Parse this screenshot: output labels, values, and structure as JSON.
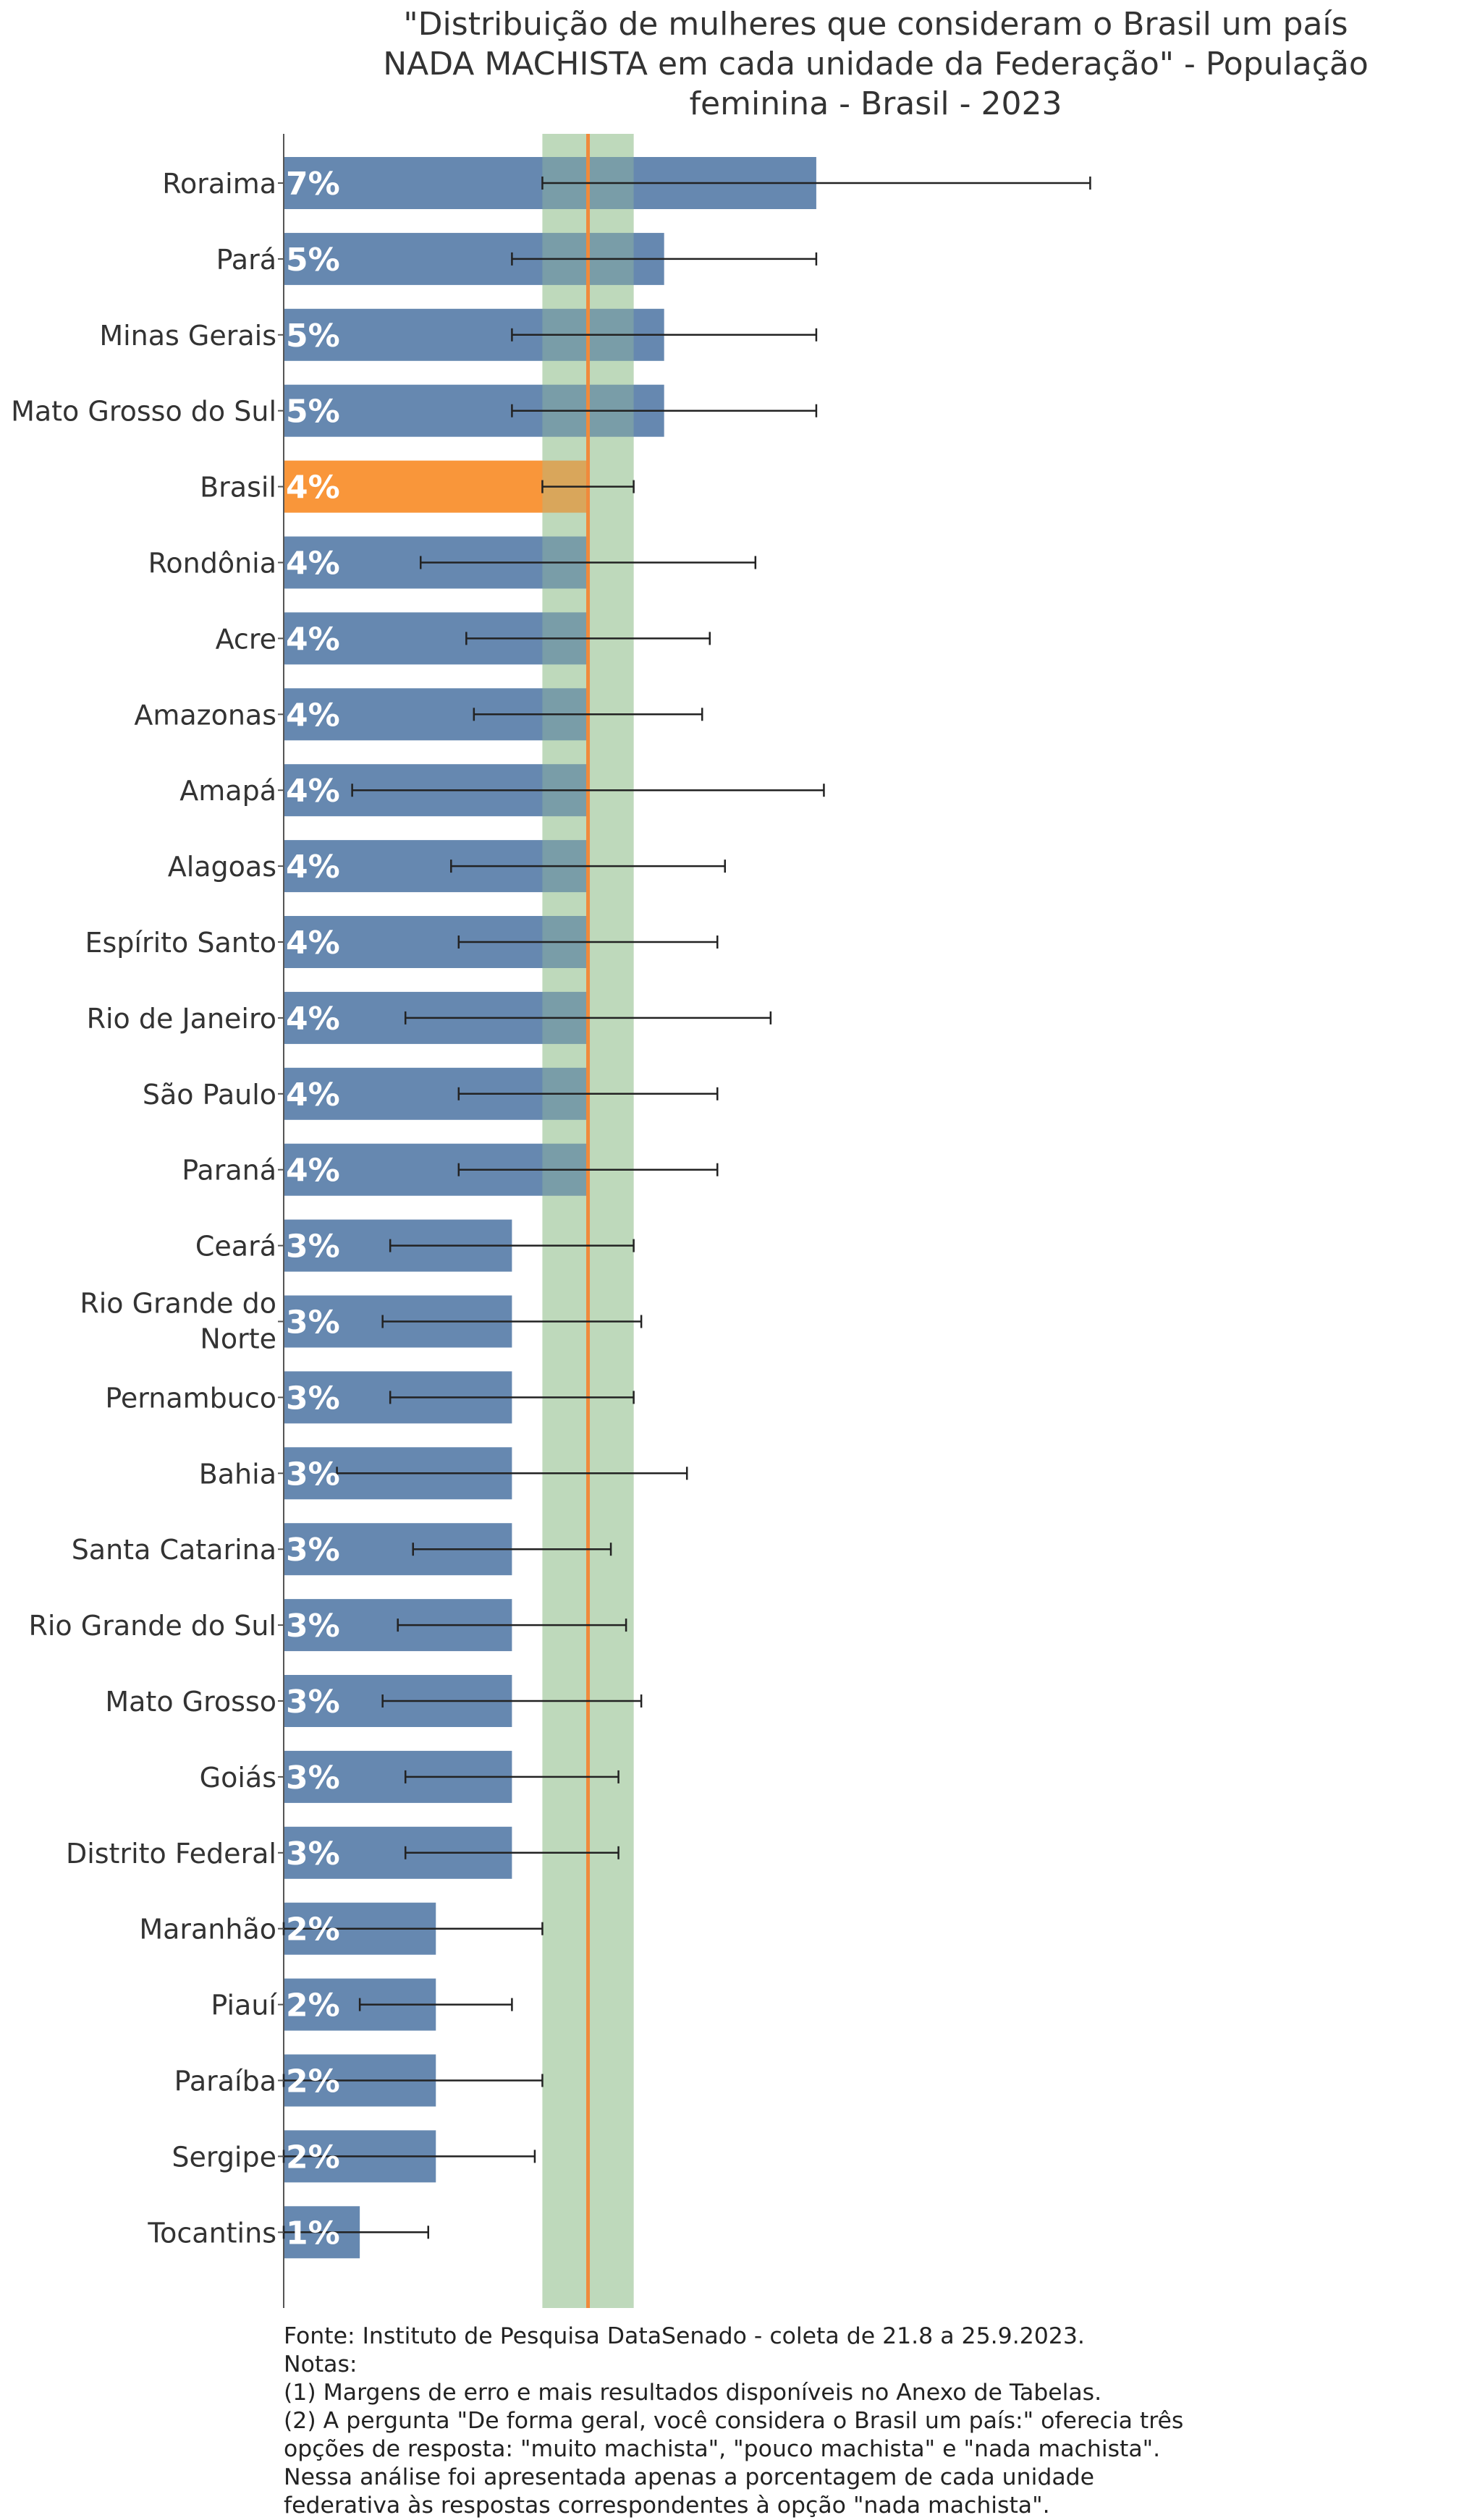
{
  "title": {
    "line1": "\"Distribuição de mulheres que consideram o Brasil um país",
    "line2": "NADA MACHISTA em cada unidade da Federação\" - População",
    "line3": "feminina - Brasil - 2023"
  },
  "footer": {
    "source": "Fonte: Instituto de Pesquisa DataSenado - coleta de 21.8 a 25.9.2023.",
    "notes_label": "Notas:",
    "note1": "(1) Margens de erro e mais resultados disponíveis no Anexo de Tabelas.",
    "note2_line1": "(2) A pergunta \"De forma geral, você considera o Brasil um país:\" oferecia três",
    "note2_line2": "opções de resposta: \"muito machista\", \"pouco machista\" e \"nada machista\".",
    "note2_line3": "Nessa análise foi apresentada apenas a porcentagem de cada unidade",
    "note2_line4": "federativa às respostas correspondentes à opção \"nada machista\"."
  },
  "chart_data": {
    "type": "bar",
    "orientation": "horizontal",
    "title": "\"Distribuição de mulheres que consideram o Brasil um país NADA MACHISTA em cada unidade da Federação\" - População feminina - Brasil - 2023",
    "xlabel": "",
    "ylabel": "",
    "xlim": [
      0,
      15.2
    ],
    "grid": false,
    "highlight_category": "Brasil",
    "reference_line": {
      "label": "Brasil",
      "value": 4.0,
      "band": [
        3.4,
        4.6
      ]
    },
    "colors": {
      "bar": "#6688b0",
      "highlight": "#f9963a",
      "reference_line": "#f08a3c",
      "band": "#cfe3cd",
      "error_bar": "#222222",
      "value_label": "#ffffff"
    },
    "categories": [
      "Roraima",
      "Pará",
      "Minas Gerais",
      "Mato Grosso do Sul",
      "Brasil",
      "Rondônia",
      "Acre",
      "Amazonas",
      "Amapá",
      "Alagoas",
      "Espírito Santo",
      "Rio de Janeiro",
      "São Paulo",
      "Paraná",
      "Ceará",
      "Rio Grande do Norte",
      "Pernambuco",
      "Bahia",
      "Santa Catarina",
      "Rio Grande do Sul",
      "Mato Grosso",
      "Goiás",
      "Distrito Federal",
      "Maranhão",
      "Piauí",
      "Paraíba",
      "Sergipe",
      "Tocantins"
    ],
    "category_lines": [
      [
        "Roraima"
      ],
      [
        "Pará"
      ],
      [
        "Minas Gerais"
      ],
      [
        "Mato Grosso do Sul"
      ],
      [
        "Brasil"
      ],
      [
        "Rondônia"
      ],
      [
        "Acre"
      ],
      [
        "Amazonas"
      ],
      [
        "Amapá"
      ],
      [
        "Alagoas"
      ],
      [
        "Espírito Santo"
      ],
      [
        "Rio de Janeiro"
      ],
      [
        "São Paulo"
      ],
      [
        "Paraná"
      ],
      [
        "Ceará"
      ],
      [
        "Rio Grande do",
        "Norte"
      ],
      [
        "Pernambuco"
      ],
      [
        "Bahia"
      ],
      [
        "Santa Catarina"
      ],
      [
        "Rio Grande do Sul"
      ],
      [
        "Mato Grosso"
      ],
      [
        "Goiás"
      ],
      [
        "Distrito Federal"
      ],
      [
        "Maranhão"
      ],
      [
        "Piauí"
      ],
      [
        "Paraíba"
      ],
      [
        "Sergipe"
      ],
      [
        "Tocantins"
      ]
    ],
    "values": [
      7,
      5,
      5,
      5,
      4,
      4,
      4,
      4,
      4,
      4,
      4,
      4,
      4,
      4,
      3,
      3,
      3,
      3,
      3,
      3,
      3,
      3,
      3,
      2,
      2,
      2,
      2,
      1
    ],
    "value_labels": [
      "7%",
      "5%",
      "5%",
      "5%",
      "4%",
      "4%",
      "4%",
      "4%",
      "4%",
      "4%",
      "4%",
      "4%",
      "4%",
      "4%",
      "3%",
      "3%",
      "3%",
      "3%",
      "3%",
      "3%",
      "3%",
      "3%",
      "3%",
      "2%",
      "2%",
      "2%",
      "2%",
      "1%"
    ],
    "error_low": [
      3.4,
      3.0,
      3.0,
      3.0,
      3.4,
      1.8,
      2.4,
      2.5,
      0.9,
      2.2,
      2.3,
      1.6,
      2.3,
      2.3,
      1.4,
      1.3,
      1.4,
      0.7,
      1.7,
      1.5,
      1.3,
      1.6,
      1.6,
      0.0,
      1.0,
      0.0,
      0.0,
      0.0
    ],
    "error_high": [
      10.6,
      7.0,
      7.0,
      7.0,
      4.6,
      6.2,
      5.6,
      5.5,
      7.1,
      5.8,
      5.7,
      6.4,
      5.7,
      5.7,
      4.6,
      4.7,
      4.6,
      5.3,
      4.3,
      4.5,
      4.7,
      4.4,
      4.4,
      3.4,
      3.0,
      3.4,
      3.3,
      1.9
    ]
  }
}
